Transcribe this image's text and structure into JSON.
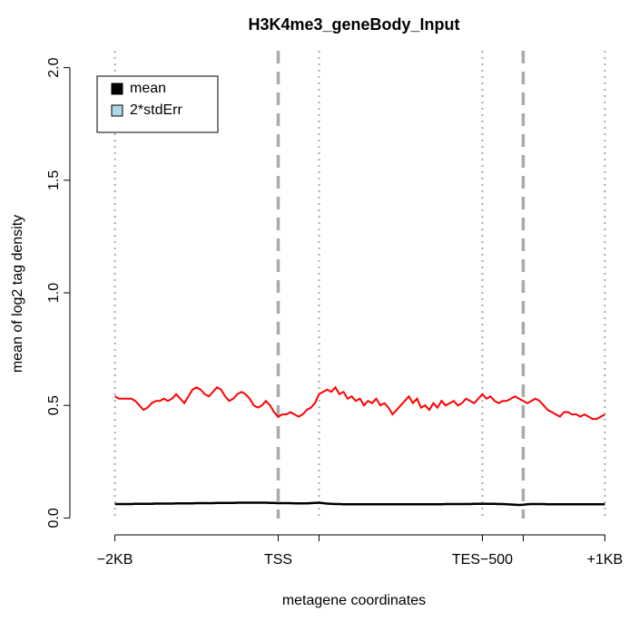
{
  "chart_data": {
    "type": "line",
    "title": "H3K4me3_geneBody_Input",
    "xlabel": "metagene coordinates",
    "ylabel": "mean of log2 tag density",
    "x": [
      0,
      1,
      2,
      3,
      4,
      5,
      6,
      7,
      8,
      9,
      10,
      11,
      12,
      13,
      14,
      15,
      16,
      17,
      18,
      19,
      20,
      21,
      22,
      23,
      24,
      25,
      26,
      27,
      28,
      29,
      30,
      31,
      32,
      33,
      34,
      35,
      36,
      37,
      38,
      39,
      40,
      41,
      42,
      43,
      44,
      45,
      46,
      47,
      48,
      49,
      50,
      51,
      52,
      53,
      54,
      55,
      56,
      57,
      58,
      59,
      60,
      61,
      62,
      63,
      64,
      65,
      66,
      67,
      68,
      69,
      70,
      71,
      72,
      73,
      74,
      75,
      76,
      77,
      78,
      79,
      80,
      81,
      82,
      83,
      84,
      85,
      86,
      87,
      88,
      89,
      90,
      91,
      92,
      93,
      94,
      95,
      96,
      97,
      98,
      99,
      100,
      101,
      102,
      103,
      104,
      105,
      106,
      107,
      108,
      109,
      110,
      111,
      112,
      113,
      114,
      115,
      116,
      117,
      118,
      119,
      120
    ],
    "series": [
      {
        "color": "#ff0000",
        "values": [
          0.54,
          0.53,
          0.53,
          0.53,
          0.53,
          0.52,
          0.5,
          0.48,
          0.49,
          0.51,
          0.52,
          0.52,
          0.53,
          0.52,
          0.53,
          0.55,
          0.53,
          0.51,
          0.54,
          0.57,
          0.58,
          0.57,
          0.55,
          0.54,
          0.56,
          0.58,
          0.57,
          0.54,
          0.52,
          0.53,
          0.55,
          0.56,
          0.55,
          0.53,
          0.5,
          0.49,
          0.5,
          0.52,
          0.5,
          0.47,
          0.45,
          0.46,
          0.46,
          0.47,
          0.46,
          0.45,
          0.46,
          0.48,
          0.49,
          0.51,
          0.55,
          0.56,
          0.57,
          0.56,
          0.58,
          0.55,
          0.56,
          0.53,
          0.54,
          0.52,
          0.53,
          0.5,
          0.52,
          0.51,
          0.53,
          0.5,
          0.51,
          0.49,
          0.46,
          0.48,
          0.5,
          0.52,
          0.54,
          0.51,
          0.53,
          0.49,
          0.5,
          0.48,
          0.51,
          0.49,
          0.52,
          0.5,
          0.51,
          0.52,
          0.5,
          0.51,
          0.53,
          0.52,
          0.51,
          0.53,
          0.55,
          0.53,
          0.54,
          0.52,
          0.51,
          0.52,
          0.52,
          0.53,
          0.54,
          0.53,
          0.52,
          0.51,
          0.52,
          0.53,
          0.52,
          0.5,
          0.48,
          0.47,
          0.46,
          0.45,
          0.47,
          0.47,
          0.46,
          0.46,
          0.45,
          0.46,
          0.45,
          0.44,
          0.44,
          0.45,
          0.46
        ]
      },
      {
        "color": "#000000",
        "values": [
          0.062,
          0.062,
          0.062,
          0.062,
          0.062,
          0.063,
          0.063,
          0.063,
          0.063,
          0.063,
          0.064,
          0.064,
          0.064,
          0.064,
          0.064,
          0.065,
          0.065,
          0.065,
          0.065,
          0.065,
          0.066,
          0.066,
          0.066,
          0.066,
          0.066,
          0.067,
          0.067,
          0.067,
          0.067,
          0.067,
          0.068,
          0.068,
          0.068,
          0.068,
          0.068,
          0.068,
          0.068,
          0.068,
          0.067,
          0.067,
          0.066,
          0.066,
          0.066,
          0.066,
          0.065,
          0.065,
          0.065,
          0.065,
          0.066,
          0.067,
          0.068,
          0.066,
          0.064,
          0.063,
          0.062,
          0.062,
          0.061,
          0.061,
          0.061,
          0.061,
          0.061,
          0.061,
          0.061,
          0.061,
          0.061,
          0.061,
          0.061,
          0.061,
          0.061,
          0.061,
          0.061,
          0.061,
          0.061,
          0.061,
          0.061,
          0.061,
          0.061,
          0.061,
          0.061,
          0.061,
          0.061,
          0.062,
          0.062,
          0.062,
          0.062,
          0.062,
          0.062,
          0.062,
          0.063,
          0.063,
          0.063,
          0.063,
          0.063,
          0.063,
          0.062,
          0.062,
          0.061,
          0.06,
          0.059,
          0.058,
          0.059,
          0.061,
          0.062,
          0.062,
          0.062,
          0.062,
          0.061,
          0.061,
          0.061,
          0.061,
          0.061,
          0.061,
          0.061,
          0.061,
          0.061,
          0.061,
          0.061,
          0.061,
          0.061,
          0.061,
          0.061
        ]
      }
    ],
    "legend": [
      {
        "label": "mean",
        "color": "#000000"
      },
      {
        "label": "2*stdErr",
        "color": "#add8e6"
      }
    ],
    "xlim": [
      -4.8,
      124.8
    ],
    "ylim": [
      -0.075,
      2.075
    ],
    "xticks": [
      {
        "value": 0,
        "label": "−2KB"
      },
      {
        "value": 40,
        "label": "TSS"
      },
      {
        "value": 50,
        "label": null
      },
      {
        "value": 90,
        "label": "TES−500"
      },
      {
        "value": 100,
        "label": null
      },
      {
        "value": 120,
        "label": "+1KB"
      }
    ],
    "yticks": [
      {
        "value": 0,
        "label": "0.0"
      },
      {
        "value": 0.5,
        "label": "0.5"
      },
      {
        "value": 1,
        "label": "1.0"
      },
      {
        "value": 1.5,
        "label": "1.5"
      },
      {
        "value": 2,
        "label": "2.0"
      }
    ],
    "dashed_lines": [
      40,
      100
    ],
    "dotted_lines": [
      0,
      50,
      90,
      120
    ]
  }
}
